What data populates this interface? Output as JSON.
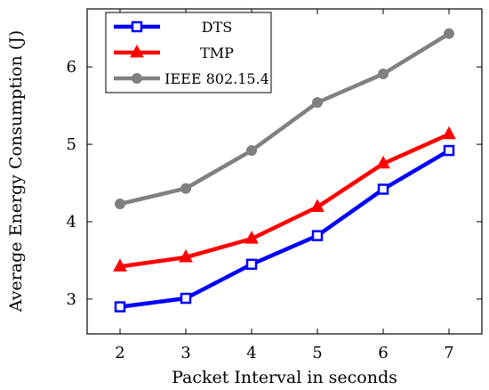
{
  "chart_data": {
    "type": "line",
    "title": "",
    "xlabel": "Packet Interval in seconds",
    "ylabel": "Average Energy Consumption (J)",
    "x": [
      2,
      3,
      4,
      5,
      6,
      7
    ],
    "xlim": [
      1.5,
      7.5
    ],
    "ylim": [
      2.55,
      6.75
    ],
    "xticks": [
      "2",
      "3",
      "4",
      "5",
      "6",
      "7"
    ],
    "yticks": [
      "3",
      "4",
      "5",
      "6"
    ],
    "grid": false,
    "legend_position": "top-left",
    "series": [
      {
        "name": "DTS",
        "color": "#0000ff",
        "marker": "square",
        "values": [
          2.9,
          3.01,
          3.45,
          3.82,
          4.42,
          4.92
        ]
      },
      {
        "name": "TMP",
        "color": "#ff0000",
        "marker": "triangle",
        "values": [
          3.42,
          3.54,
          3.78,
          4.19,
          4.75,
          5.13
        ]
      },
      {
        "name": "IEEE 802.15.4",
        "color": "#808080",
        "marker": "circle",
        "values": [
          4.23,
          4.43,
          4.92,
          5.54,
          5.91,
          6.43
        ]
      }
    ]
  }
}
